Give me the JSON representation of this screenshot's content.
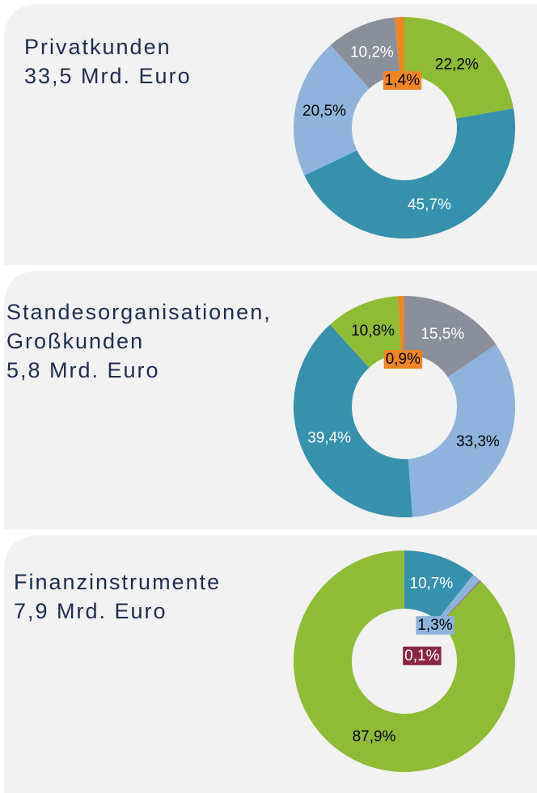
{
  "chart_data": [
    {
      "type": "pie",
      "title": "Privatkunden",
      "subtitle": "33,5 Mrd. Euro",
      "values": [
        22.2,
        45.7,
        20.5,
        10.2,
        1.4
      ],
      "value_labels": [
        "22,2%",
        "45,7%",
        "20,5%",
        "10,2%",
        "1,4%"
      ],
      "colors": [
        "#8fbc35",
        "#3591ad",
        "#8eb4dd",
        "#8a8f9c",
        "#f08521"
      ]
    },
    {
      "type": "pie",
      "title": "Standesorganisationen, Großkunden",
      "subtitle": "5,8 Mrd. Euro",
      "values": [
        15.5,
        33.3,
        39.4,
        10.8,
        0.9
      ],
      "value_labels": [
        "15,5%",
        "33,3%",
        "39,4%",
        "10,8%",
        "0,9%"
      ],
      "colors": [
        "#8a8f9c",
        "#8eb4dd",
        "#3591ad",
        "#8fbc35",
        "#f08521"
      ]
    },
    {
      "type": "pie",
      "title": "Finanzinstrumente",
      "subtitle": "7,9 Mrd. Euro",
      "values": [
        10.7,
        1.3,
        0.1,
        87.9
      ],
      "value_labels": [
        "10,7%",
        "1,3%",
        "0,1%",
        "87,9%"
      ],
      "colors": [
        "#3591ad",
        "#8eb4dd",
        "#8b2544",
        "#8fbc35"
      ]
    }
  ]
}
